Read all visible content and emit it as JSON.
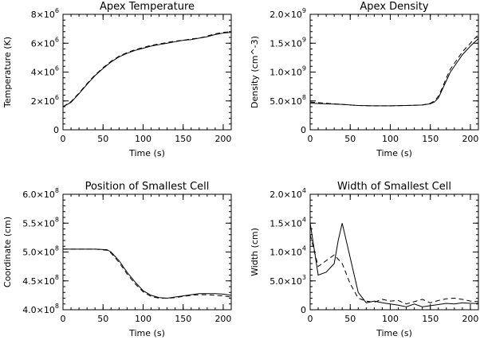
{
  "figure": {
    "background": "#ffffff",
    "ink": "#000000"
  },
  "chart_data": [
    {
      "type": "line",
      "title": "Apex Temperature",
      "xlabel": "Time (s)",
      "ylabel": "Temperature (K)",
      "xlim": [
        0,
        210
      ],
      "ylim": [
        0,
        8000000
      ],
      "xticks": [
        {
          "v": 0,
          "label": "0"
        },
        {
          "v": 50,
          "label": "50"
        },
        {
          "v": 100,
          "label": "100"
        },
        {
          "v": 150,
          "label": "150"
        },
        {
          "v": 200,
          "label": "200"
        }
      ],
      "yticks": [
        {
          "v": 0,
          "label": "0"
        },
        {
          "v": 2000000,
          "label": "2×10",
          "exp": "6"
        },
        {
          "v": 4000000,
          "label": "4×10",
          "exp": "6"
        },
        {
          "v": 6000000,
          "label": "6×10",
          "exp": "6"
        },
        {
          "v": 8000000,
          "label": "8×10",
          "exp": "6"
        }
      ],
      "series": [
        {
          "style": "solid",
          "x": [
            0,
            10,
            20,
            30,
            40,
            50,
            60,
            70,
            80,
            90,
            100,
            110,
            120,
            130,
            140,
            150,
            160,
            170,
            180,
            190,
            200,
            210
          ],
          "y": [
            1600000,
            1900000,
            2500000,
            3150000,
            3750000,
            4250000,
            4700000,
            5050000,
            5300000,
            5500000,
            5650000,
            5800000,
            5900000,
            6000000,
            6100000,
            6200000,
            6250000,
            6350000,
            6450000,
            6600000,
            6700000,
            6750000
          ]
        },
        {
          "style": "dashed",
          "x": [
            0,
            10,
            20,
            30,
            40,
            50,
            60,
            70,
            80,
            90,
            100,
            110,
            120,
            130,
            140,
            150,
            160,
            170,
            180,
            190,
            200,
            210
          ],
          "y": [
            1600000,
            1950000,
            2550000,
            3200000,
            3800000,
            4300000,
            4750000,
            5100000,
            5350000,
            5550000,
            5700000,
            5850000,
            5950000,
            6050000,
            6150000,
            6200000,
            6300000,
            6350000,
            6500000,
            6650000,
            6750000,
            6800000
          ]
        }
      ]
    },
    {
      "type": "line",
      "title": "Apex Density",
      "xlabel": "Time (s)",
      "ylabel": "Density (cm^-3)",
      "xlim": [
        0,
        210
      ],
      "ylim": [
        0,
        2000000000
      ],
      "xticks": [
        {
          "v": 0,
          "label": "0"
        },
        {
          "v": 50,
          "label": "50"
        },
        {
          "v": 100,
          "label": "100"
        },
        {
          "v": 150,
          "label": "150"
        },
        {
          "v": 200,
          "label": "200"
        }
      ],
      "yticks": [
        {
          "v": 0,
          "label": "0"
        },
        {
          "v": 500000000,
          "label": "5.0×10",
          "exp": "8"
        },
        {
          "v": 1000000000,
          "label": "1.0×10",
          "exp": "9"
        },
        {
          "v": 1500000000,
          "label": "1.5×10",
          "exp": "9"
        },
        {
          "v": 2000000000,
          "label": "2.0×10",
          "exp": "9"
        }
      ],
      "series": [
        {
          "style": "solid",
          "x": [
            0,
            20,
            40,
            60,
            80,
            100,
            120,
            140,
            150,
            155,
            160,
            165,
            170,
            175,
            180,
            190,
            200,
            210
          ],
          "y": [
            460000000,
            450000000,
            440000000,
            420000000,
            415000000,
            415000000,
            420000000,
            430000000,
            450000000,
            480000000,
            550000000,
            700000000,
            850000000,
            1000000000,
            1100000000,
            1300000000,
            1450000000,
            1580000000
          ]
        },
        {
          "style": "dashed",
          "x": [
            0,
            20,
            40,
            60,
            80,
            100,
            120,
            140,
            150,
            155,
            160,
            165,
            170,
            175,
            180,
            190,
            200,
            210
          ],
          "y": [
            480000000,
            460000000,
            440000000,
            420000000,
            415000000,
            415000000,
            420000000,
            430000000,
            460000000,
            500000000,
            580000000,
            730000000,
            900000000,
            1050000000,
            1150000000,
            1350000000,
            1500000000,
            1650000000
          ]
        }
      ]
    },
    {
      "type": "line",
      "title": "Position of Smallest Cell",
      "xlabel": "Time (s)",
      "ylabel": "Coordinate (cm)",
      "xlim": [
        0,
        210
      ],
      "ylim": [
        400000000,
        600000000
      ],
      "xticks": [
        {
          "v": 0,
          "label": "0"
        },
        {
          "v": 50,
          "label": "50"
        },
        {
          "v": 100,
          "label": "100"
        },
        {
          "v": 150,
          "label": "150"
        },
        {
          "v": 200,
          "label": "200"
        }
      ],
      "yticks": [
        {
          "v": 400000000,
          "label": "4.0×10",
          "exp": "8"
        },
        {
          "v": 450000000,
          "label": "4.5×10",
          "exp": "8"
        },
        {
          "v": 500000000,
          "label": "5.0×10",
          "exp": "8"
        },
        {
          "v": 550000000,
          "label": "5.5×10",
          "exp": "8"
        },
        {
          "v": 600000000,
          "label": "6.0×10",
          "exp": "8"
        }
      ],
      "series": [
        {
          "style": "solid",
          "x": [
            0,
            20,
            40,
            55,
            60,
            70,
            80,
            90,
            100,
            110,
            120,
            130,
            140,
            150,
            160,
            170,
            180,
            190,
            200,
            210
          ],
          "y": [
            505000000,
            505000000,
            505000000,
            504000000,
            500000000,
            485000000,
            465000000,
            448000000,
            433000000,
            425000000,
            421000000,
            420000000,
            422000000,
            424000000,
            426000000,
            428000000,
            428000000,
            428000000,
            427000000,
            425000000
          ]
        },
        {
          "style": "dashed",
          "x": [
            0,
            20,
            40,
            55,
            60,
            70,
            80,
            90,
            100,
            110,
            120,
            130,
            140,
            150,
            160,
            170,
            180,
            190,
            200,
            210
          ],
          "y": [
            505000000,
            505000000,
            505000000,
            503000000,
            498000000,
            482000000,
            462000000,
            445000000,
            431000000,
            423000000,
            420000000,
            420000000,
            421000000,
            423000000,
            425000000,
            426000000,
            426000000,
            425000000,
            424000000,
            422000000
          ]
        }
      ]
    },
    {
      "type": "line",
      "title": "Width of Smallest Cell",
      "xlabel": "Time (s)",
      "ylabel": "Width (cm)",
      "xlim": [
        0,
        210
      ],
      "ylim": [
        0,
        20000
      ],
      "xticks": [
        {
          "v": 0,
          "label": "0"
        },
        {
          "v": 50,
          "label": "50"
        },
        {
          "v": 100,
          "label": "100"
        },
        {
          "v": 150,
          "label": "150"
        },
        {
          "v": 200,
          "label": "200"
        }
      ],
      "yticks": [
        {
          "v": 0,
          "label": "0"
        },
        {
          "v": 5000,
          "label": "5.0×10",
          "exp": "3"
        },
        {
          "v": 10000,
          "label": "1.0×10",
          "exp": "4"
        },
        {
          "v": 15000,
          "label": "1.5×10",
          "exp": "4"
        },
        {
          "v": 20000,
          "label": "2.0×10",
          "exp": "4"
        }
      ],
      "series": [
        {
          "style": "solid",
          "x": [
            0,
            10,
            20,
            30,
            35,
            40,
            50,
            60,
            70,
            80,
            90,
            100,
            110,
            120,
            130,
            140,
            150,
            160,
            170,
            180,
            190,
            200,
            210
          ],
          "y": [
            15000,
            6000,
            6500,
            8000,
            12000,
            15000,
            9000,
            3000,
            1200,
            1500,
            1200,
            1000,
            800,
            500,
            1000,
            500,
            700,
            900,
            1100,
            1000,
            1200,
            1100,
            1100
          ]
        },
        {
          "style": "dashed",
          "x": [
            0,
            10,
            20,
            30,
            40,
            50,
            60,
            70,
            80,
            90,
            100,
            110,
            120,
            130,
            140,
            150,
            160,
            170,
            180,
            190,
            200,
            210
          ],
          "y": [
            13000,
            7500,
            8500,
            9500,
            8000,
            4500,
            2000,
            1500,
            1300,
            1800,
            1500,
            1600,
            1000,
            1400,
            1800,
            1200,
            1600,
            1900,
            2000,
            1800,
            1500,
            1400
          ]
        }
      ]
    }
  ]
}
